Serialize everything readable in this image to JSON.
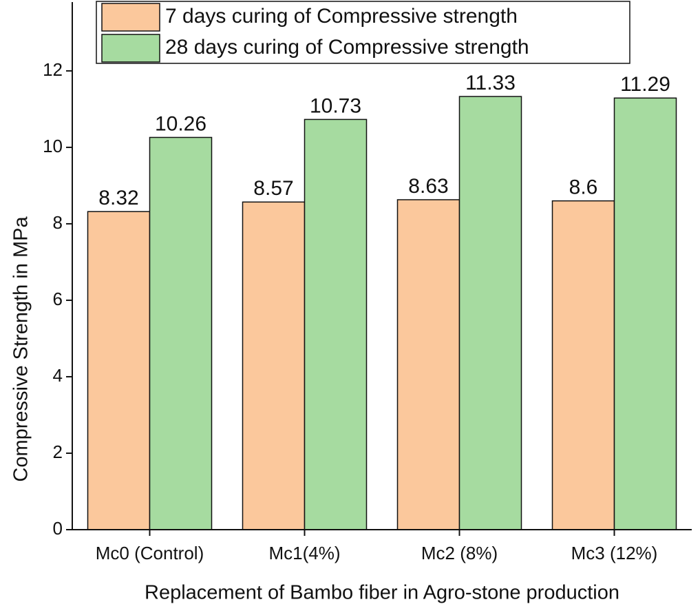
{
  "chart_data": {
    "type": "bar",
    "x_label": "Replacement of Bambo fiber in Agro-stone production",
    "y_label": "Compressive Strength in MPa",
    "categories": [
      "Mc0 (Control)",
      "Mc1(4%)",
      "Mc2 (8%)",
      "Mc3 (12%)"
    ],
    "series": [
      {
        "name": "7 days curing of Compressive strength",
        "color": "#fbc89c",
        "values": [
          8.32,
          8.57,
          8.63,
          8.6
        ]
      },
      {
        "name": "28 days curing of Compressive strength",
        "color": "#a6dba0",
        "values": [
          10.26,
          10.73,
          11.33,
          11.29
        ]
      }
    ],
    "ylim": [
      0,
      13.8
    ],
    "yticks": [
      0,
      2,
      4,
      6,
      8,
      10,
      12
    ],
    "grid": false,
    "legend": "top"
  }
}
